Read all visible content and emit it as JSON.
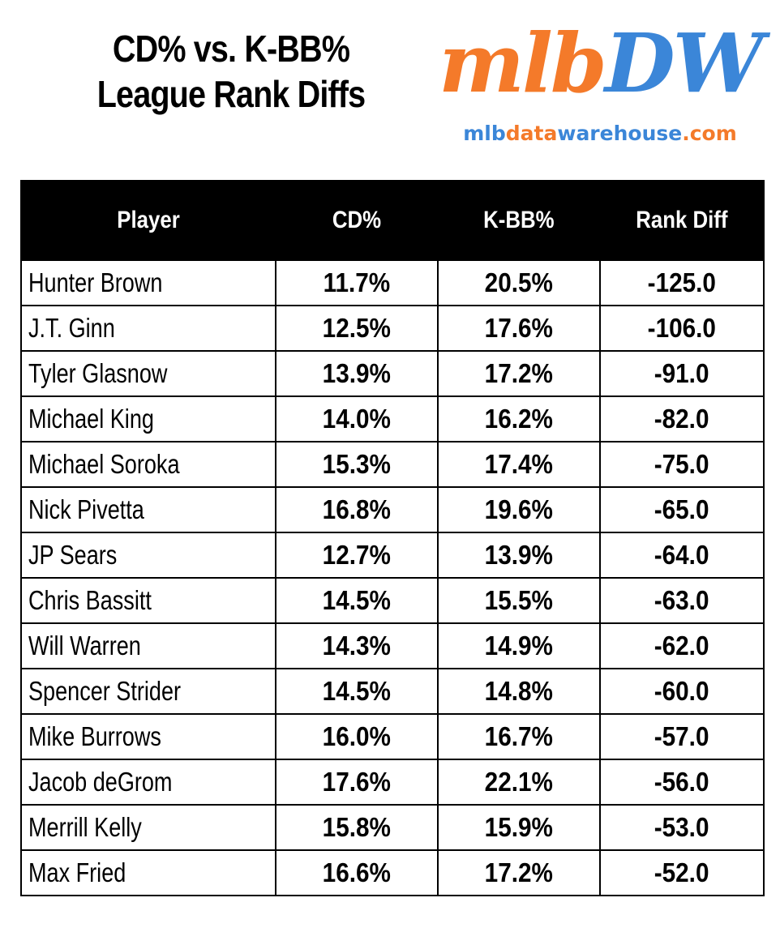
{
  "header": {
    "title_line1": "CD% vs. K-BB%",
    "title_line2": "League Rank Diffs"
  },
  "logo": {
    "word_part1": "mlb",
    "word_part2": "DW",
    "url_part1": "mlb",
    "url_part2": "data",
    "url_part3": "warehouse",
    "url_part4": ".com",
    "colors": {
      "orange": "#F47A2A",
      "blue": "#3B86D8"
    }
  },
  "chart_data": {
    "type": "table",
    "columns": [
      "Player",
      "CD%",
      "K-BB%",
      "Rank Diff"
    ],
    "rows": [
      [
        "Hunter Brown",
        "11.7%",
        "20.5%",
        "-125.0"
      ],
      [
        "J.T. Ginn",
        "12.5%",
        "17.6%",
        "-106.0"
      ],
      [
        "Tyler Glasnow",
        "13.9%",
        "17.2%",
        "-91.0"
      ],
      [
        "Michael King",
        "14.0%",
        "16.2%",
        "-82.0"
      ],
      [
        "Michael Soroka",
        "15.3%",
        "17.4%",
        "-75.0"
      ],
      [
        "Nick Pivetta",
        "16.8%",
        "19.6%",
        "-65.0"
      ],
      [
        "JP Sears",
        "12.7%",
        "13.9%",
        "-64.0"
      ],
      [
        "Chris Bassitt",
        "14.5%",
        "15.5%",
        "-63.0"
      ],
      [
        "Will Warren",
        "14.3%",
        "14.9%",
        "-62.0"
      ],
      [
        "Spencer Strider",
        "14.5%",
        "14.8%",
        "-60.0"
      ],
      [
        "Mike Burrows",
        "16.0%",
        "16.7%",
        "-57.0"
      ],
      [
        "Jacob deGrom",
        "17.6%",
        "22.1%",
        "-56.0"
      ],
      [
        "Merrill Kelly",
        "15.8%",
        "15.9%",
        "-53.0"
      ],
      [
        "Max Fried",
        "16.6%",
        "17.2%",
        "-52.0"
      ]
    ],
    "header_background": "#000000",
    "header_text_color": "#FFFFFF"
  }
}
